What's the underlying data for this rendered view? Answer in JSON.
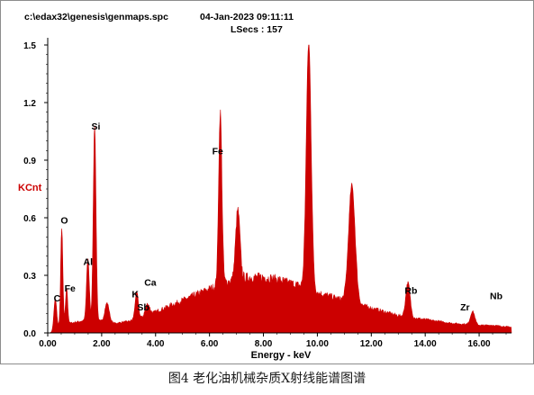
{
  "header": {
    "file_path": "c:\\edax32\\genesis\\genmaps.spc",
    "datetime": "04-Jan-2023 09:11:11",
    "lsecs": "LSecs :  157"
  },
  "caption": "图4  老化油机械杂质X射线能谱图谱",
  "chart_data": {
    "type": "area",
    "title": "",
    "xlabel": "Energy - keV",
    "ylabel": "KCnt",
    "xlim": [
      0,
      17.2
    ],
    "ylim": [
      0,
      1.5
    ],
    "x_ticks": [
      0,
      2,
      4,
      6,
      8,
      10,
      12,
      14,
      16
    ],
    "x_tick_labels": [
      "0.00",
      "2.00",
      "4.00",
      "6.00",
      "8.00",
      "10.00",
      "12.00",
      "14.00",
      "16.00"
    ],
    "y_ticks": [
      0,
      0.3,
      0.6,
      0.9,
      1.2,
      1.5
    ],
    "y_tick_labels": [
      "0.0",
      "0.3",
      "0.6",
      "0.9",
      "1.2",
      "1.5"
    ],
    "fill_color": "#cc0000",
    "continuum": [
      [
        0.1,
        0.0
      ],
      [
        0.4,
        0.03
      ],
      [
        0.8,
        0.05
      ],
      [
        1.2,
        0.06
      ],
      [
        1.6,
        0.07
      ],
      [
        2.0,
        0.06
      ],
      [
        2.5,
        0.05
      ],
      [
        3.0,
        0.06
      ],
      [
        3.5,
        0.08
      ],
      [
        4.0,
        0.11
      ],
      [
        4.5,
        0.14
      ],
      [
        5.0,
        0.17
      ],
      [
        5.5,
        0.2
      ],
      [
        6.0,
        0.23
      ],
      [
        6.5,
        0.26
      ],
      [
        7.0,
        0.28
      ],
      [
        7.5,
        0.29
      ],
      [
        8.0,
        0.29
      ],
      [
        8.5,
        0.28
      ],
      [
        9.0,
        0.26
      ],
      [
        9.5,
        0.24
      ],
      [
        10.0,
        0.21
      ],
      [
        10.5,
        0.19
      ],
      [
        11.0,
        0.17
      ],
      [
        11.5,
        0.15
      ],
      [
        12.0,
        0.13
      ],
      [
        12.5,
        0.11
      ],
      [
        13.0,
        0.09
      ],
      [
        13.5,
        0.08
      ],
      [
        14.0,
        0.07
      ],
      [
        14.5,
        0.06
      ],
      [
        15.0,
        0.05
      ],
      [
        15.5,
        0.045
      ],
      [
        16.0,
        0.04
      ],
      [
        16.5,
        0.04
      ],
      [
        17.2,
        0.03
      ]
    ],
    "peaks": [
      {
        "x": 0.28,
        "height": 0.16,
        "width": 0.05
      },
      {
        "x": 0.52,
        "height": 0.51,
        "width": 0.04
      },
      {
        "x": 0.7,
        "height": 0.19,
        "width": 0.04
      },
      {
        "x": 1.49,
        "height": 0.32,
        "width": 0.05
      },
      {
        "x": 1.74,
        "height": 1.02,
        "width": 0.05
      },
      {
        "x": 2.2,
        "height": 0.1,
        "width": 0.08
      },
      {
        "x": 3.3,
        "height": 0.14,
        "width": 0.06
      },
      {
        "x": 3.7,
        "height": 0.06,
        "width": 0.08
      },
      {
        "x": 6.4,
        "height": 0.9,
        "width": 0.06
      },
      {
        "x": 7.05,
        "height": 0.36,
        "width": 0.08
      },
      {
        "x": 9.68,
        "height": 1.29,
        "width": 0.09
      },
      {
        "x": 11.28,
        "height": 0.61,
        "width": 0.12
      },
      {
        "x": 13.36,
        "height": 0.18,
        "width": 0.08
      },
      {
        "x": 15.76,
        "height": 0.07,
        "width": 0.08
      }
    ],
    "annotations": [
      {
        "text": "C",
        "x": 0.22,
        "y": 0.165
      },
      {
        "text": "O",
        "x": 0.48,
        "y": 0.57
      },
      {
        "text": "Fe",
        "x": 0.62,
        "y": 0.215
      },
      {
        "text": "Al",
        "x": 1.32,
        "y": 0.355
      },
      {
        "text": "Si",
        "x": 1.62,
        "y": 1.06
      },
      {
        "text": "K",
        "x": 3.12,
        "y": 0.185
      },
      {
        "text": "Sb",
        "x": 3.32,
        "y": 0.118
      },
      {
        "text": "Ca",
        "x": 3.58,
        "y": 0.245
      },
      {
        "text": "Fe",
        "x": 6.1,
        "y": 0.93
      },
      {
        "text": "Rb",
        "x": 13.24,
        "y": 0.205
      },
      {
        "text": "Zr",
        "x": 15.3,
        "y": 0.118
      },
      {
        "text": "Nb",
        "x": 16.4,
        "y": 0.175
      }
    ]
  }
}
